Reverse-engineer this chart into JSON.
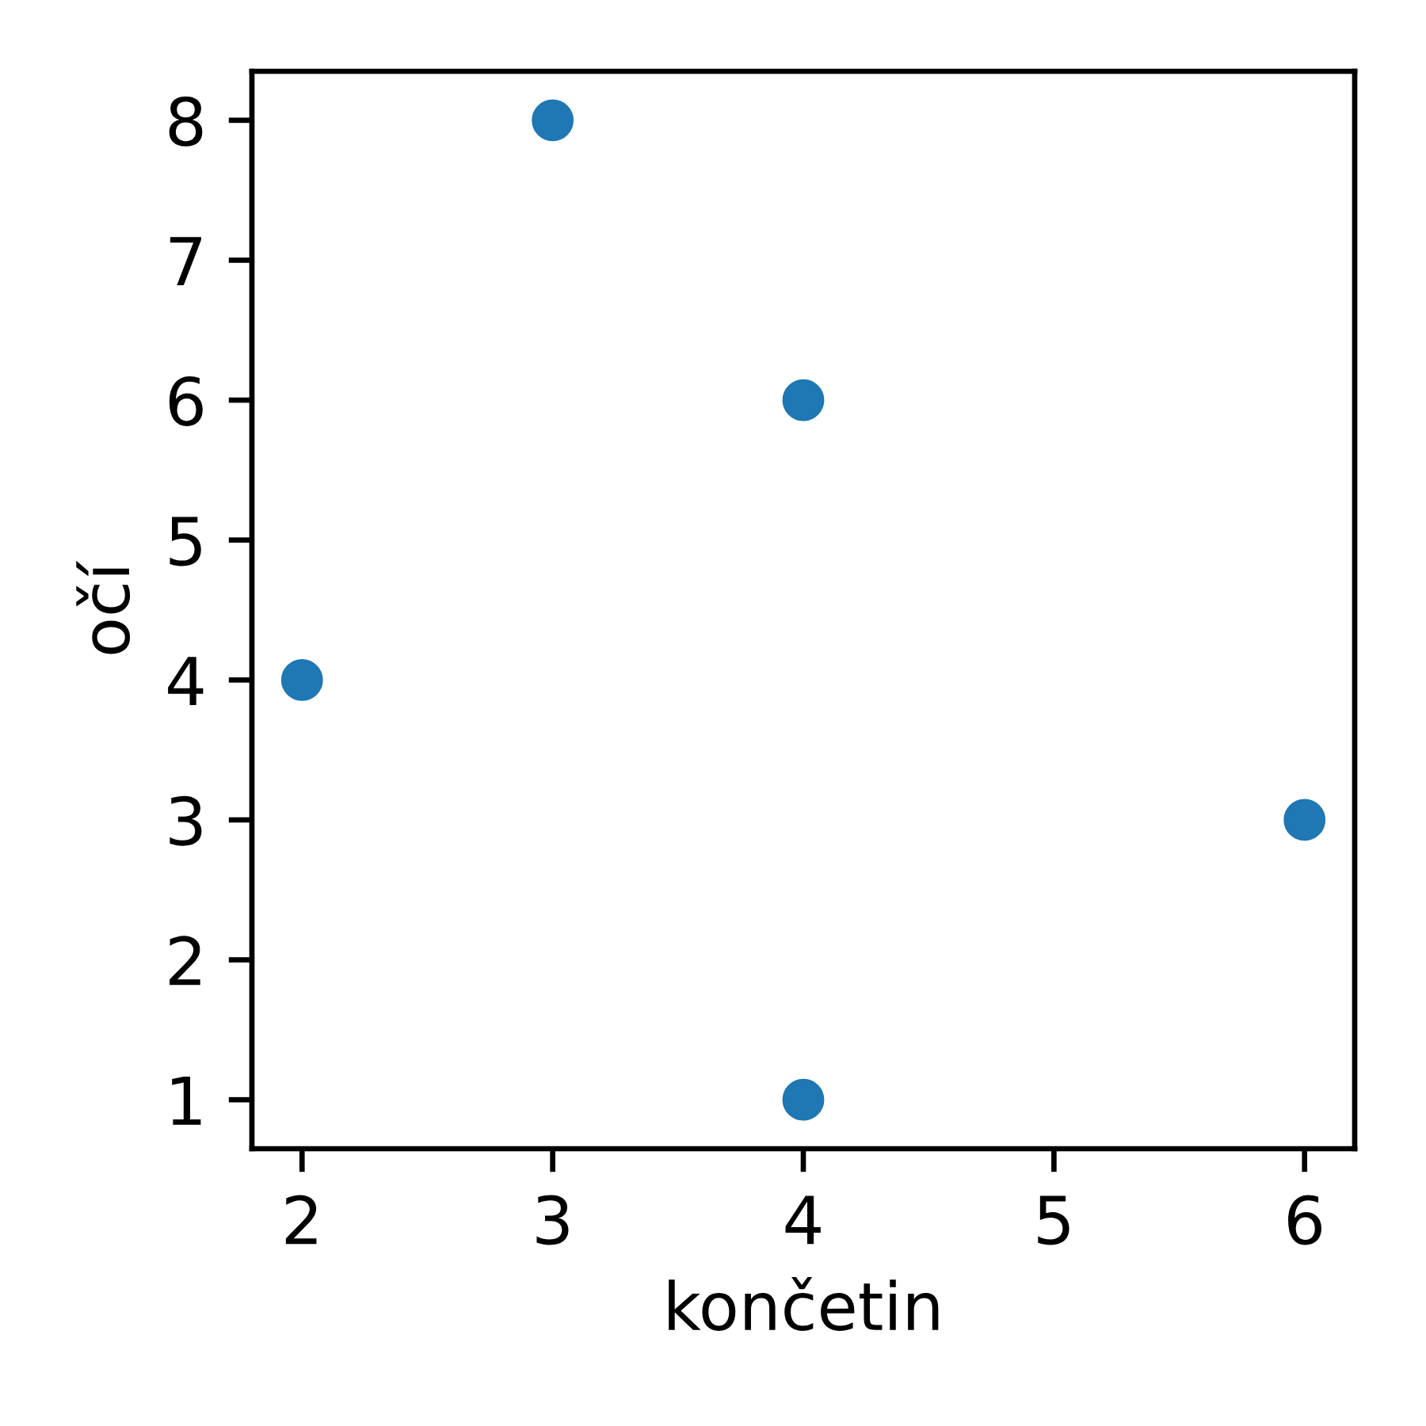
{
  "chart_data": {
    "type": "scatter",
    "xlabel": "končetin",
    "ylabel": "očí",
    "x": [
      3,
      4,
      2,
      6,
      4
    ],
    "series": [
      {
        "color": "#1f77b4",
        "values": [
          8,
          6,
          4,
          3,
          1
        ]
      }
    ],
    "xlim": [
      1.8,
      6.2
    ],
    "ylim": [
      0.65,
      8.35
    ],
    "xticks": [
      2,
      3,
      4,
      5,
      6
    ],
    "yticks": [
      1,
      2,
      3,
      4,
      5,
      6,
      7,
      8
    ],
    "marker": "circle",
    "grid": false,
    "legend": false
  }
}
